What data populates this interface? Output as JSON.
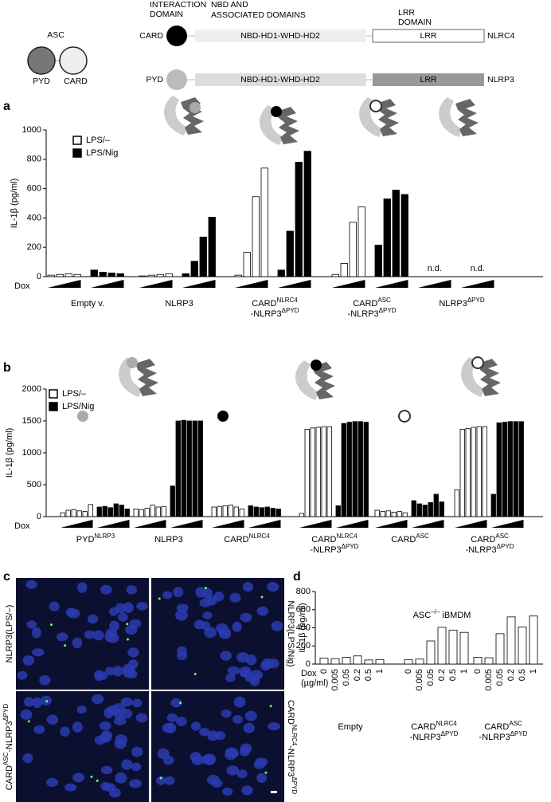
{
  "panel_labels": [
    "a",
    "b",
    "c",
    "d"
  ],
  "schematic": {
    "asc": {
      "title": "ASC",
      "domains": [
        "PYD",
        "CARD"
      ]
    },
    "headers": [
      [
        "INTERACTION",
        "DOMAIN"
      ],
      [
        "NBD AND",
        "ASSOCIATED DOMAINS"
      ],
      [
        "LRR",
        "DOMAIN"
      ]
    ],
    "rows": [
      {
        "domain": "CARD",
        "nbd": "NBD-HD1-WHD-HD2",
        "lrr": "LRR",
        "protein": "NLRC4"
      },
      {
        "domain": "PYD",
        "nbd": "NBD-HD1-WHD-HD2",
        "lrr": "LRR",
        "protein": "NLRP3"
      }
    ]
  },
  "chart_data": [
    {
      "type": "bar",
      "ylabel": "IL-1β (pg/ml)",
      "ylim": [
        0,
        1000
      ],
      "yticks": [
        0,
        200,
        400,
        600,
        800,
        1000
      ],
      "dox": [
        "Dox"
      ],
      "legend": "upper left",
      "series": [
        {
          "name": "LPS/–",
          "color": "#ffffff"
        },
        {
          "name": "LPS/Nig",
          "color": "#000000"
        }
      ],
      "groups": [
        {
          "label": [
            [
              [
                "Empty v."
              ]
            ]
          ],
          "values": [
            [
              10,
              15,
              20,
              15
            ],
            [
              45,
              30,
              25,
              20
            ]
          ]
        },
        {
          "label": [
            [
              [
                "NLRP3"
              ]
            ]
          ],
          "values": [
            [
              5,
              10,
              15,
              20
            ],
            [
              20,
              105,
              270,
              405
            ]
          ]
        },
        {
          "label": [
            [
              [
                "CARD",
                "NLRC4"
              ]
            ],
            [
              [
                "-NLRP3",
                "ΔPYD"
              ]
            ]
          ],
          "values": [
            [
              10,
              165,
              545,
              740
            ],
            [
              45,
              310,
              780,
              855
            ]
          ]
        },
        {
          "label": [
            [
              [
                "CARD",
                "ASC"
              ]
            ],
            [
              [
                "-NLRP3",
                "ΔPYD"
              ]
            ]
          ],
          "values": [
            [
              15,
              90,
              370,
              475
            ],
            [
              215,
              530,
              590,
              560
            ]
          ]
        },
        {
          "label": [
            [
              [
                "NLRP3",
                "ΔPYD"
              ]
            ]
          ],
          "values": [
            [
              null,
              null,
              null,
              null
            ],
            [
              null,
              null,
              null,
              null
            ]
          ],
          "annotations": [
            "n.d.",
            "n.d."
          ]
        }
      ]
    },
    {
      "type": "bar",
      "ylabel": "IL-1β (pg/ml)",
      "ylim": [
        0,
        2000
      ],
      "yticks": [
        0,
        500,
        1000,
        1500,
        2000
      ],
      "dox": [
        "Dox"
      ],
      "legend": "upper left",
      "series": [
        {
          "name": "LPS/–",
          "color": "#ffffff"
        },
        {
          "name": "LPS/Nig",
          "color": "#000000"
        }
      ],
      "groups": [
        {
          "label": [
            [
              [
                "PYD",
                "NLRP3"
              ]
            ]
          ],
          "values": [
            [
              60,
              100,
              110,
              90,
              80,
              190
            ],
            [
              150,
              160,
              140,
              200,
              180,
              120
            ]
          ]
        },
        {
          "label": [
            [
              [
                "NLRP3"
              ]
            ]
          ],
          "values": [
            [
              120,
              110,
              130,
              180,
              150,
              160
            ],
            [
              480,
              1500,
              1510,
              1500,
              1500,
              1500
            ]
          ]
        },
        {
          "label": [
            [
              [
                "CARD",
                "NLRC4"
              ]
            ]
          ],
          "values": [
            [
              150,
              160,
              170,
              180,
              150,
              120
            ],
            [
              170,
              150,
              140,
              150,
              130,
              120
            ]
          ]
        },
        {
          "label": [
            [
              [
                "CARD",
                "NLRC4"
              ]
            ],
            [
              [
                "-NLRP3",
                "ΔPYD"
              ]
            ]
          ],
          "values": [
            [
              50,
              1370,
              1390,
              1400,
              1410,
              1410
            ],
            [
              170,
              1460,
              1480,
              1490,
              1490,
              1480
            ]
          ]
        },
        {
          "label": [
            [
              [
                "CARD",
                "ASC"
              ]
            ]
          ],
          "values": [
            [
              100,
              80,
              90,
              70,
              80,
              60
            ],
            [
              250,
              200,
              180,
              220,
              350,
              230
            ]
          ]
        },
        {
          "label": [
            [
              [
                "CARD",
                "ASC"
              ]
            ],
            [
              [
                "-NLRP3",
                "ΔPYD"
              ]
            ]
          ],
          "values": [
            [
              420,
              1370,
              1380,
              1400,
              1410,
              1410
            ],
            [
              350,
              1470,
              1480,
              1490,
              1490,
              1490
            ]
          ]
        }
      ]
    },
    {
      "type": "bar",
      "title": [
        [
          [
            "ASC",
            "–/–"
          ],
          [
            " iBMDM"
          ]
        ]
      ],
      "ylabel": "IL-1β (pg/ml)",
      "ylim": [
        0,
        800
      ],
      "yticks": [
        0,
        200,
        400,
        600,
        800
      ],
      "dox": [
        "Dox",
        "(µg/ml)"
      ],
      "series": [
        {
          "color": "#ffffff"
        }
      ],
      "groups": [
        {
          "label": [
            [
              [
                "Empty"
              ]
            ]
          ],
          "categories": [
            "0",
            "0.005",
            "0.05",
            "0.2",
            "0.5",
            "1"
          ],
          "values": [
            [
              65,
              60,
              75,
              90,
              45,
              50
            ]
          ]
        },
        {
          "label": [
            [
              [
                "CARD",
                "NLRC4"
              ]
            ],
            [
              [
                "-NLRP3",
                "ΔPYD"
              ]
            ]
          ],
          "categories": [
            "0",
            "0.005",
            "0.05",
            "0.2",
            "0.5",
            "1"
          ],
          "values": [
            [
              50,
              55,
              255,
              405,
              375,
              350
            ]
          ]
        },
        {
          "label": [
            [
              [
                "CARD",
                "ASC"
              ]
            ],
            [
              [
                "-NLRP3",
                "ΔPYD"
              ]
            ]
          ],
          "categories": [
            "0",
            "0.005",
            "0.05",
            "0.2",
            "0.5",
            "1"
          ],
          "values": [
            [
              75,
              70,
              335,
              520,
              410,
              530
            ]
          ]
        }
      ]
    }
  ],
  "images": {
    "labels": [
      [
        [
          [
            "NLRP3(LPS/–)"
          ]
        ]
      ],
      [
        [
          [
            "NLRP3(LPS/Nig)"
          ]
        ]
      ],
      [
        [
          [
            "CARD",
            "ASC"
          ],
          [
            "-NLRP3",
            "ΔPYD"
          ]
        ]
      ],
      [
        [
          [
            "CARD",
            "NLRC4"
          ],
          [
            "-NLRP3",
            "ΔPYD"
          ]
        ]
      ]
    ]
  }
}
